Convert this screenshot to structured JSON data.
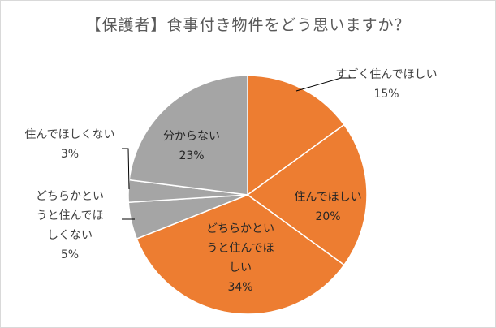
{
  "chart_data": {
    "type": "pie",
    "title": "【保護者】食事付き物件をどう思いますか？",
    "categories": [
      "すごく住んでほしい",
      "住んでほしい",
      "どちらかというと住んでほしい",
      "どちらかというと住んでほしくない",
      "住んでほしくない",
      "分からない"
    ],
    "values": [
      15,
      20,
      34,
      5,
      3,
      23
    ],
    "value_labels": [
      "15%",
      "20%",
      "34%",
      "5%",
      "3%",
      "23%"
    ],
    "colors": [
      "#ED7D31",
      "#ED7D31",
      "#ED7D31",
      "#A5A5A5",
      "#A5A5A5",
      "#A5A5A5"
    ],
    "start": "12 o'clock",
    "direction": "clockwise",
    "legend": "none"
  }
}
